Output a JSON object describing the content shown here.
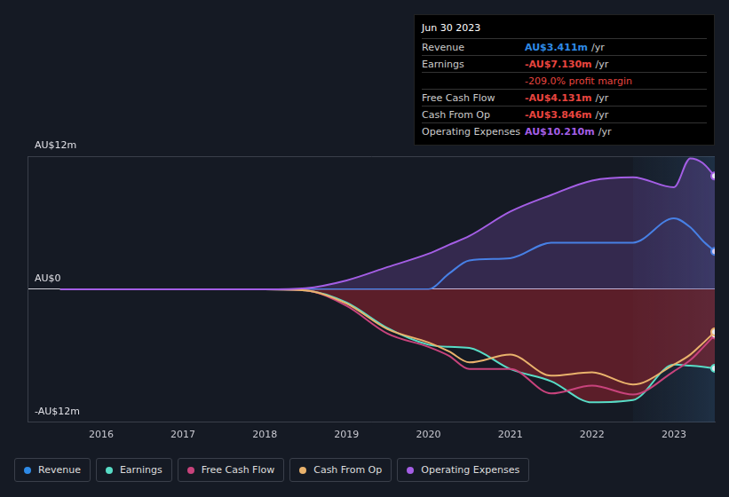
{
  "chart_data": {
    "type": "line",
    "x": [
      2015.5,
      2016,
      2016.5,
      2017,
      2017.5,
      2018,
      2018.5,
      2019,
      2019.5,
      2020,
      2020.25,
      2020.5,
      2021,
      2021.5,
      2022,
      2022.5,
      2023,
      2023.2,
      2023.35,
      2023.5
    ],
    "xlim": [
      2015.1,
      2023.5
    ],
    "xticks": [
      2016,
      2017,
      2018,
      2019,
      2020,
      2021,
      2022,
      2023
    ],
    "ylim": [
      -12,
      12
    ],
    "yticks": [
      {
        "value": -12,
        "label": "-AU$12m"
      },
      {
        "value": 0,
        "label": "AU$0"
      },
      {
        "value": 12,
        "label": "AU$12m"
      }
    ],
    "grid": true,
    "legend": "bottom-left",
    "series": [
      {
        "name": "Revenue",
        "color": "#2e8ae6",
        "values": [
          0,
          0,
          0,
          0,
          0,
          0,
          0,
          0,
          0,
          0,
          1.4,
          2.6,
          2.8,
          4.2,
          4.2,
          4.2,
          6.4,
          5.6,
          4.4,
          3.411
        ]
      },
      {
        "name": "Earnings",
        "color": "#58dcc6",
        "values": [
          0,
          0,
          0,
          0,
          0,
          0,
          -0.1,
          -1.2,
          -3.5,
          -5.0,
          -5.2,
          -5.3,
          -7.2,
          -8.3,
          -10.2,
          -10.0,
          -6.8,
          -6.9,
          -7.0,
          -7.13
        ]
      },
      {
        "name": "Free Cash Flow",
        "color": "#c8437c",
        "values": [
          0,
          0,
          0,
          0,
          0,
          0,
          -0.1,
          -1.5,
          -4.0,
          -5.2,
          -6.0,
          -7.2,
          -7.2,
          -9.4,
          -8.7,
          -9.5,
          -7.4,
          -6.4,
          -5.3,
          -4.131
        ]
      },
      {
        "name": "Cash From Op",
        "color": "#e9b26c",
        "values": [
          0,
          0,
          0,
          0,
          0,
          0,
          -0.1,
          -1.3,
          -3.6,
          -4.8,
          -5.6,
          -6.6,
          -5.9,
          -7.8,
          -7.5,
          -8.6,
          -6.8,
          -5.9,
          -4.9,
          -3.846
        ]
      },
      {
        "name": "Operating Expenses",
        "color": "#a45ee5",
        "values": [
          0,
          0,
          0,
          0,
          0,
          0,
          0.1,
          0.8,
          2.0,
          3.2,
          4.0,
          4.8,
          7.0,
          8.5,
          9.8,
          10.1,
          9.2,
          11.8,
          11.4,
          10.21
        ]
      }
    ],
    "annotation": {
      "title": "Jun 30 2023",
      "rows": [
        {
          "label": "Revenue",
          "value": "AU$3.411m",
          "unit": "/yr"
        },
        {
          "label": "Earnings",
          "value": "-AU$7.130m",
          "unit": "/yr"
        },
        {
          "value": "-209.0% profit margin"
        },
        {
          "label": "Free Cash Flow",
          "value": "-AU$4.131m",
          "unit": "/yr"
        },
        {
          "label": "Cash From Op",
          "value": "-AU$3.846m",
          "unit": "/yr"
        },
        {
          "label": "Operating Expenses",
          "value": "AU$10.210m",
          "unit": "/yr"
        }
      ]
    }
  }
}
